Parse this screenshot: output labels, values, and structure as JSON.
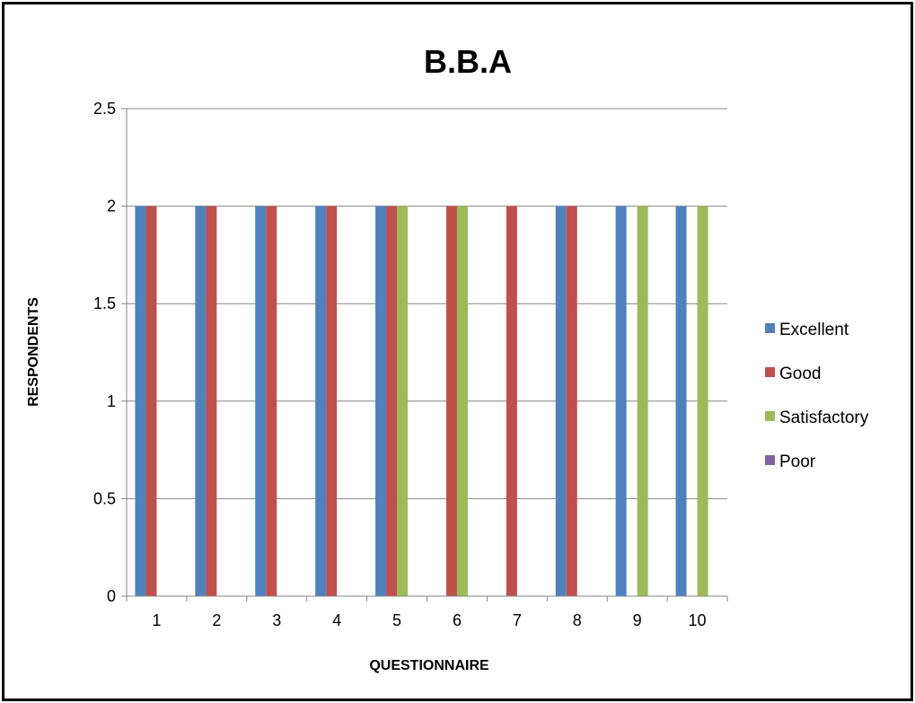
{
  "chart_data": {
    "type": "bar",
    "title": "B.B.A",
    "xlabel": "QUESTIONNAIRE",
    "ylabel": "RESPONDENTS",
    "categories": [
      "1",
      "2",
      "3",
      "4",
      "5",
      "6",
      "7",
      "8",
      "9",
      "10"
    ],
    "series": [
      {
        "name": "Excellent",
        "color": "#4F81BD",
        "values": [
          2,
          2,
          2,
          2,
          2,
          0,
          0,
          2,
          2,
          2
        ]
      },
      {
        "name": "Good",
        "color": "#C0504D",
        "values": [
          2,
          2,
          2,
          2,
          2,
          2,
          2,
          2,
          0,
          0
        ]
      },
      {
        "name": "Satisfactory",
        "color": "#9BBB59",
        "values": [
          0,
          0,
          0,
          0,
          2,
          2,
          0,
          0,
          2,
          2
        ]
      },
      {
        "name": "Poor",
        "color": "#8064A2",
        "values": [
          0,
          0,
          0,
          0,
          0,
          0,
          0,
          0,
          0,
          0
        ]
      }
    ],
    "ylim": [
      0,
      2.5
    ],
    "yticks": [
      "0",
      "0.5",
      "1",
      "1.5",
      "2",
      "2.5"
    ],
    "grid": true,
    "legend_position": "right"
  }
}
